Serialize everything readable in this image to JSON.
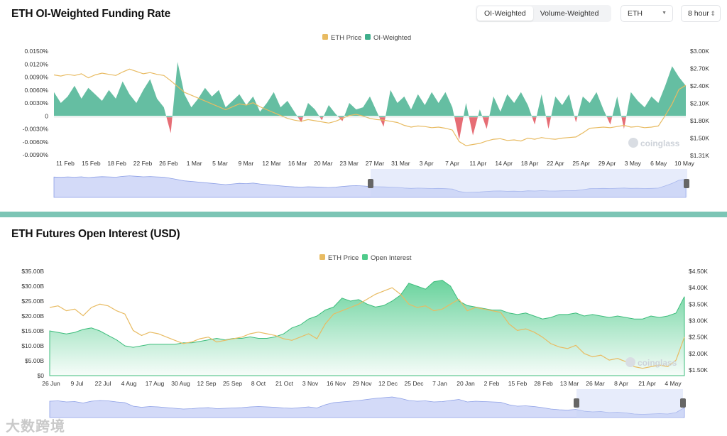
{
  "header": {
    "tabs": [
      {
        "label": "OI-Weighted",
        "active": true
      },
      {
        "label": "Volume-Weighted",
        "active": false
      }
    ],
    "coin_select": {
      "value": "ETH"
    },
    "interval_select": {
      "value": "8 hour"
    }
  },
  "brand": {
    "watermark": "coinglass",
    "corner_watermark": "大数跨境"
  },
  "colors": {
    "price": "#e8bb62",
    "funding_pos": "#3fae8b",
    "funding_neg": "#e2535d",
    "oi": "#4fcb8b",
    "nav": "#aebcf2",
    "divider": "#7cc5b5"
  },
  "chart_data": [
    {
      "type": "area",
      "title": "ETH OI-Weighted Funding Rate",
      "legend": [
        "ETH Price",
        "OI-Weighted"
      ],
      "legend_position": "top-center",
      "grid": false,
      "x_start": "2025-02-09",
      "x_end": "2025-05-10",
      "x_ticks": [
        "11 Feb",
        "15 Feb",
        "18 Feb",
        "22 Feb",
        "26 Feb",
        "1 Mar",
        "5 Mar",
        "9 Mar",
        "12 Mar",
        "16 Mar",
        "20 Mar",
        "23 Mar",
        "27 Mar",
        "31 Mar",
        "3 Apr",
        "7 Apr",
        "11 Apr",
        "14 Apr",
        "18 Apr",
        "22 Apr",
        "25 Apr",
        "29 Apr",
        "3 May",
        "6 May",
        "10 May"
      ],
      "y_left_ticks": [
        "0.0150%",
        "0.0120%",
        "0.0090%",
        "0.0060%",
        "0.0030%",
        "0",
        "-0.0030%",
        "-0.0060%",
        "-0.0090%"
      ],
      "y_left_range": [
        -0.009,
        0.015
      ],
      "y_right_ticks": [
        "$3.00K",
        "$2.70K",
        "$2.40K",
        "$2.10K",
        "$1.80K",
        "$1.50K",
        "$1.31K"
      ],
      "y_right_range": [
        1310,
        3000
      ],
      "series": [
        {
          "name": "ETH Price",
          "axis": "right",
          "values": [
            2700,
            2680,
            2710,
            2690,
            2720,
            2650,
            2700,
            2730,
            2710,
            2690,
            2750,
            2800,
            2760,
            2720,
            2740,
            2710,
            2690,
            2600,
            2500,
            2400,
            2350,
            2300,
            2250,
            2200,
            2150,
            2100,
            2150,
            2200,
            2180,
            2220,
            2150,
            2100,
            2050,
            2000,
            1950,
            1920,
            1900,
            1930,
            1910,
            1890,
            1870,
            1900,
            1950,
            2000,
            2020,
            1990,
            1950,
            1930,
            1920,
            1900,
            1880,
            1830,
            1800,
            1820,
            1810,
            1790,
            1800,
            1780,
            1750,
            1550,
            1480,
            1500,
            1520,
            1560,
            1590,
            1600,
            1570,
            1580,
            1560,
            1610,
            1590,
            1620,
            1600,
            1590,
            1610,
            1620,
            1630,
            1700,
            1780,
            1790,
            1800,
            1790,
            1810,
            1830,
            1800,
            1810,
            1790,
            1800,
            1820,
            2000,
            2200,
            2450,
            2520
          ]
        },
        {
          "name": "OI-Weighted",
          "axis": "left",
          "values": [
            0.0055,
            0.003,
            0.0045,
            0.007,
            0.004,
            0.0065,
            0.005,
            0.0035,
            0.006,
            0.004,
            0.008,
            0.005,
            0.003,
            0.006,
            0.0085,
            0.004,
            0.002,
            -0.004,
            0.0125,
            0.005,
            0.002,
            0.004,
            0.0065,
            0.0045,
            0.006,
            0.002,
            0.0035,
            0.005,
            0.0025,
            0.0045,
            0.001,
            0.003,
            0.0055,
            0.002,
            0.0035,
            0.001,
            -0.0015,
            0.003,
            0.0015,
            -0.001,
            0.0025,
            0.0005,
            -0.0012,
            0.003,
            0.0015,
            0.002,
            0.0045,
            0.001,
            -0.0025,
            0.006,
            0.003,
            0.0045,
            0.0015,
            0.005,
            0.0025,
            0.0055,
            0.003,
            0.0055,
            0.002,
            -0.0055,
            0.003,
            -0.0045,
            0.0015,
            -0.003,
            0.0045,
            0.001,
            0.005,
            0.003,
            0.0055,
            0.0025,
            -0.002,
            0.005,
            -0.003,
            0.0045,
            0.0025,
            0.005,
            -0.0015,
            0.0045,
            0.003,
            0.0055,
            0.0015,
            -0.002,
            0.0045,
            -0.003,
            0.0055,
            0.0035,
            0.002,
            0.0045,
            0.003,
            0.007,
            0.0115,
            0.009,
            0.007
          ]
        }
      ]
    },
    {
      "type": "area",
      "title": "ETH Futures Open Interest (USD)",
      "legend": [
        "ETH Price",
        "Open Interest"
      ],
      "legend_position": "top-center",
      "grid": false,
      "x_start": "2024-06-26",
      "x_end": "2025-05-10",
      "x_ticks": [
        "26 Jun",
        "9 Jul",
        "22 Jul",
        "4 Aug",
        "17 Aug",
        "30 Aug",
        "12 Sep",
        "25 Sep",
        "8 Oct",
        "21 Oct",
        "3 Nov",
        "16 Nov",
        "29 Nov",
        "12 Dec",
        "25 Dec",
        "7 Jan",
        "20 Jan",
        "2 Feb",
        "15 Feb",
        "28 Feb",
        "13 Mar",
        "26 Mar",
        "8 Apr",
        "21 Apr",
        "4 May"
      ],
      "y_left_ticks": [
        "$35.00B",
        "$30.00B",
        "$25.00B",
        "$20.00B",
        "$15.00B",
        "$10.00B",
        "$5.00B",
        "$0"
      ],
      "y_left_range": [
        0,
        35
      ],
      "y_right_ticks": [
        "$4.50K",
        "$4.00K",
        "$3.50K",
        "$3.00K",
        "$2.50K",
        "$2.00K",
        "$1.50K"
      ],
      "y_right_range": [
        1500,
        4500
      ],
      "series": [
        {
          "name": "ETH Price",
          "axis": "right",
          "values": [
            3400,
            3450,
            3300,
            3350,
            3150,
            3400,
            3500,
            3450,
            3300,
            3200,
            2700,
            2550,
            2650,
            2600,
            2500,
            2400,
            2300,
            2350,
            2450,
            2500,
            2350,
            2400,
            2450,
            2500,
            2600,
            2650,
            2600,
            2550,
            2450,
            2400,
            2500,
            2600,
            2450,
            2900,
            3200,
            3300,
            3400,
            3500,
            3650,
            3800,
            3900,
            4000,
            3800,
            3500,
            3400,
            3450,
            3300,
            3350,
            3500,
            3650,
            3300,
            3400,
            3350,
            3300,
            3250,
            2900,
            2700,
            2750,
            2650,
            2500,
            2300,
            2200,
            2150,
            2250,
            2000,
            1900,
            1950,
            1800,
            1850,
            1750,
            1600,
            1550,
            1600,
            1650,
            1600,
            1800,
            2500
          ]
        },
        {
          "name": "Open Interest",
          "axis": "left",
          "values": [
            15.0,
            14.5,
            14.0,
            14.5,
            15.5,
            16.0,
            15.0,
            13.5,
            12.0,
            10.0,
            9.5,
            10.0,
            10.5,
            10.5,
            10.5,
            10.5,
            11.0,
            11.0,
            11.5,
            12.0,
            12.5,
            12.0,
            12.5,
            12.5,
            13.0,
            12.5,
            12.5,
            13.0,
            14.0,
            16.0,
            17.0,
            19.0,
            20.0,
            22.0,
            23.0,
            26.0,
            25.0,
            25.5,
            24.0,
            23.0,
            23.5,
            25.0,
            27.0,
            31.0,
            30.0,
            29.0,
            31.5,
            32.0,
            30.0,
            25.0,
            23.5,
            23.0,
            22.5,
            22.0,
            22.0,
            21.0,
            20.5,
            21.0,
            20.0,
            19.0,
            19.5,
            20.5,
            20.5,
            21.0,
            20.0,
            20.5,
            20.0,
            19.5,
            20.0,
            19.5,
            19.0,
            19.0,
            20.0,
            19.5,
            20.0,
            21.0,
            26.5
          ]
        }
      ]
    }
  ]
}
